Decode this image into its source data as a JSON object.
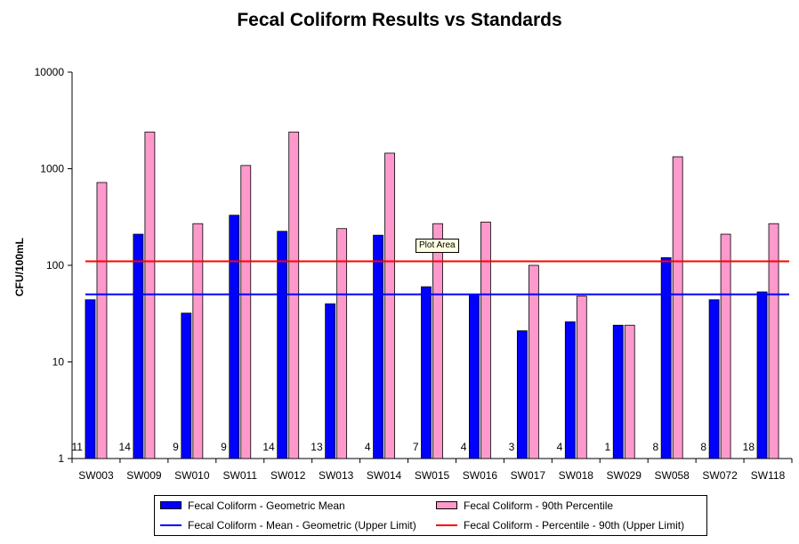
{
  "chart_data": {
    "type": "bar",
    "title": "Fecal Coliform Results vs Standards",
    "ylabel": "CFU/100mL",
    "xlabel": "",
    "yscale": "log",
    "ylim": [
      1,
      10000
    ],
    "yticks": [
      "1",
      "10",
      "100",
      "1000",
      "10000"
    ],
    "categories": [
      "SW003",
      "SW009",
      "SW010",
      "SW011",
      "SW012",
      "SW013",
      "SW014",
      "SW015",
      "SW016",
      "SW017",
      "SW018",
      "SW029",
      "SW058",
      "SW072",
      "SW118"
    ],
    "sample_counts": [
      "11",
      "14",
      "9",
      "9",
      "14",
      "13",
      "4",
      "7",
      "4",
      "3",
      "4",
      "1",
      "8",
      "8",
      "18"
    ],
    "series": [
      {
        "name": "Fecal Coliform - Geometric Mean",
        "color": "#0000ff",
        "values": [
          44,
          210,
          32,
          330,
          225,
          40,
          205,
          60,
          50,
          21,
          26,
          24,
          120,
          44,
          53
        ]
      },
      {
        "name": "Fecal Coliform - 90th Percentile",
        "color": "#ff99cc",
        "values": [
          720,
          2400,
          270,
          1080,
          2400,
          240,
          1450,
          270,
          280,
          100,
          48,
          24,
          1330,
          210,
          270
        ]
      }
    ],
    "reference_lines": [
      {
        "name": "Fecal Coliform - Mean - Geometric (Upper Limit)",
        "value": 50,
        "color": "#0000ff"
      },
      {
        "name": "Fecal Coliform - Percentile - 90th (Upper Limit)",
        "value": 110,
        "color": "#ff0000"
      }
    ],
    "legend_position": "bottom",
    "grid": false,
    "tooltip": "Plot Area"
  }
}
